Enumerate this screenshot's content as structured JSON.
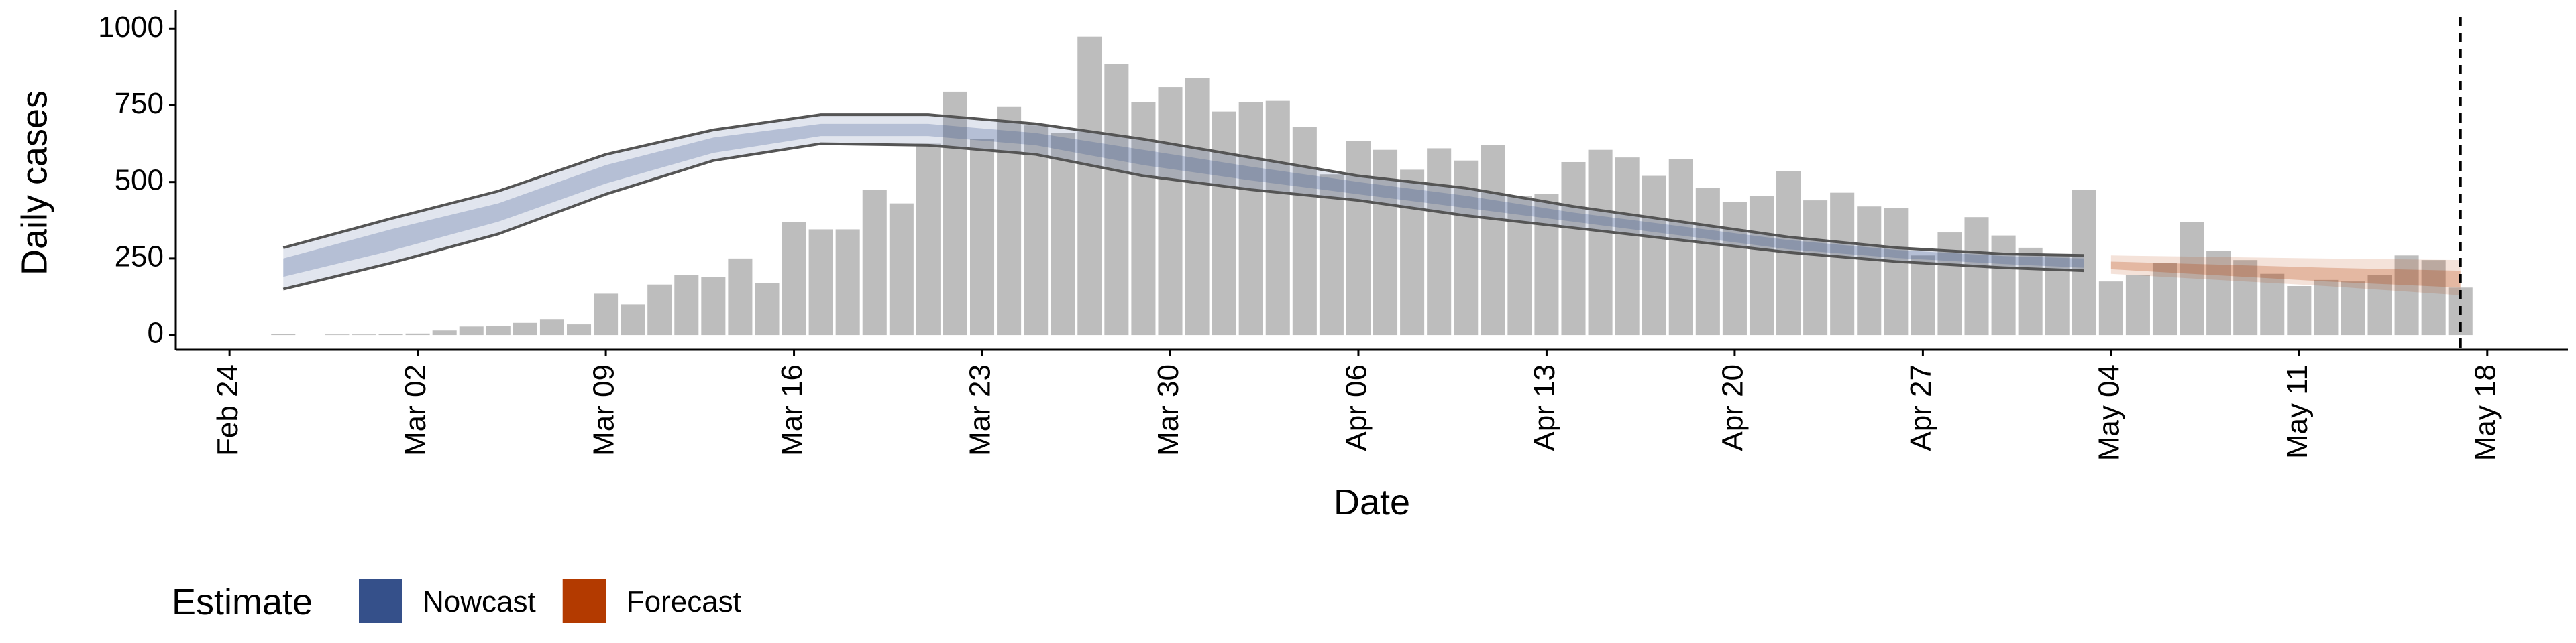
{
  "chart_data": {
    "type": "bar",
    "x_label": "Date",
    "y_label": "Daily cases",
    "legend_title": "Estimate",
    "color": "#bdbdbd",
    "x": [
      "Feb 26",
      "Feb 27",
      "Feb 28",
      "Feb 29",
      "Mar 01",
      "Mar 02",
      "Mar 03",
      "Mar 04",
      "Mar 05",
      "Mar 06",
      "Mar 07",
      "Mar 08",
      "Mar 09",
      "Mar 10",
      "Mar 11",
      "Mar 12",
      "Mar 13",
      "Mar 14",
      "Mar 15",
      "Mar 16",
      "Mar 17",
      "Mar 18",
      "Mar 19",
      "Mar 20",
      "Mar 21",
      "Mar 22",
      "Mar 23",
      "Mar 24",
      "Mar 25",
      "Mar 26",
      "Mar 27",
      "Mar 28",
      "Mar 29",
      "Mar 30",
      "Mar 31",
      "Apr 01",
      "Apr 02",
      "Apr 03",
      "Apr 04",
      "Apr 05",
      "Apr 06",
      "Apr 07",
      "Apr 08",
      "Apr 09",
      "Apr 10",
      "Apr 11",
      "Apr 12",
      "Apr 13",
      "Apr 14",
      "Apr 15",
      "Apr 16",
      "Apr 17",
      "Apr 18",
      "Apr 19",
      "Apr 20",
      "Apr 21",
      "Apr 22",
      "Apr 23",
      "Apr 24",
      "Apr 25",
      "Apr 26",
      "Apr 27",
      "Apr 28",
      "Apr 29",
      "Apr 30",
      "May 01",
      "May 02",
      "May 03",
      "May 04",
      "May 05",
      "May 06",
      "May 07",
      "May 08",
      "May 09",
      "May 10",
      "May 11",
      "May 12",
      "May 13",
      "May 14",
      "May 15",
      "May 16",
      "May 17"
    ],
    "values": [
      3,
      0,
      2,
      2,
      3,
      5,
      15,
      28,
      30,
      40,
      50,
      35,
      135,
      100,
      165,
      195,
      190,
      250,
      170,
      370,
      345,
      345,
      475,
      430,
      625,
      795,
      640,
      745,
      685,
      660,
      975,
      885,
      760,
      810,
      840,
      730,
      760,
      765,
      680,
      525,
      635,
      605,
      540,
      610,
      570,
      620,
      455,
      460,
      565,
      605,
      580,
      520,
      575,
      480,
      435,
      455,
      535,
      440,
      465,
      420,
      415,
      260,
      335,
      385,
      325,
      285,
      265,
      475,
      175,
      195,
      235,
      370,
      275,
      245,
      200,
      160,
      180,
      175,
      195,
      260,
      245,
      155
    ],
    "xlim": [
      "Feb 22",
      "May 21"
    ],
    "xticks": [
      "Feb 24",
      "Mar 02",
      "Mar 09",
      "Mar 16",
      "Mar 23",
      "Mar 30",
      "Apr 06",
      "Apr 13",
      "Apr 20",
      "Apr 27",
      "May 04",
      "May 11",
      "May 18"
    ],
    "ylim": [
      -48,
      1040
    ],
    "yticks": [
      0,
      250,
      500,
      750,
      1000
    ],
    "vline": "May 17",
    "estimates": [
      {
        "name": "Nowcast",
        "color": "#35508a",
        "line_color": "#555555",
        "x": [
          "Feb 26",
          "Mar 01",
          "Mar 05",
          "Mar 09",
          "Mar 13",
          "Mar 17",
          "Mar 21",
          "Mar 25",
          "Mar 29",
          "Apr 02",
          "Apr 06",
          "Apr 10",
          "Apr 14",
          "Apr 18",
          "Apr 22",
          "Apr 26",
          "Apr 30",
          "May 03"
        ],
        "upper": [
          285,
          380,
          470,
          590,
          670,
          720,
          720,
          690,
          640,
          580,
          520,
          480,
          420,
          370,
          320,
          285,
          265,
          260
        ],
        "lower": [
          150,
          235,
          330,
          460,
          570,
          625,
          620,
          590,
          520,
          475,
          440,
          390,
          350,
          310,
          270,
          240,
          220,
          210
        ],
        "inner_upper": [
          250,
          345,
          430,
          555,
          645,
          690,
          690,
          660,
          605,
          550,
          500,
          455,
          400,
          355,
          310,
          278,
          258,
          250
        ],
        "inner_lower": [
          190,
          275,
          370,
          495,
          595,
          650,
          650,
          620,
          555,
          505,
          460,
          415,
          370,
          325,
          280,
          252,
          232,
          220
        ]
      },
      {
        "name": "Forecast",
        "color": "#b33a00",
        "x": [
          "May 04",
          "May 08",
          "May 12",
          "May 17"
        ],
        "upper": [
          260,
          255,
          250,
          245
        ],
        "lower": [
          200,
          180,
          160,
          130
        ],
        "inner_upper": [
          240,
          230,
          220,
          210
        ],
        "inner_lower": [
          215,
          195,
          175,
          155
        ]
      }
    ]
  }
}
